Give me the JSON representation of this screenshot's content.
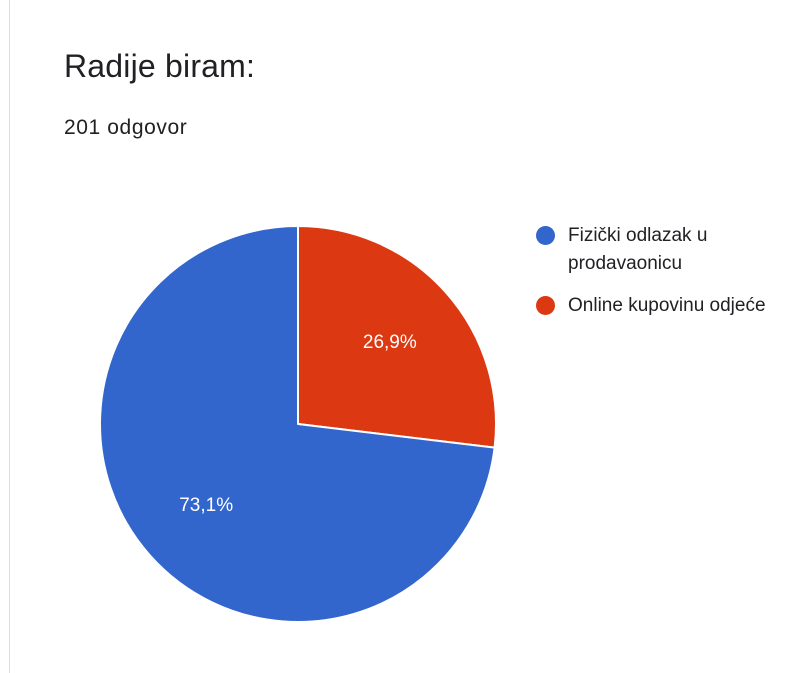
{
  "header": {
    "title": "Radije biram:",
    "response_count": "201 odgovor"
  },
  "colors": {
    "blue": "#3366cc",
    "red": "#dc3912",
    "text": "#202124",
    "slice_label": "#ffffff"
  },
  "chart_data": {
    "type": "pie",
    "title": "Radije biram:",
    "legend_position": "right",
    "start_angle_deg": 0,
    "slices": [
      {
        "label": "Online kupovinu odjeće",
        "value": 26.9,
        "display": "26,9%",
        "color": "#dc3912"
      },
      {
        "label": "Fizički odlazak u prodavaonicu",
        "value": 73.1,
        "display": "73,1%",
        "color": "#3366cc"
      }
    ],
    "legend": [
      {
        "label": "Fizički odlazak u prodavaonicu",
        "color": "#3366cc"
      },
      {
        "label": "Online kupovinu odjeće",
        "color": "#dc3912"
      }
    ]
  }
}
